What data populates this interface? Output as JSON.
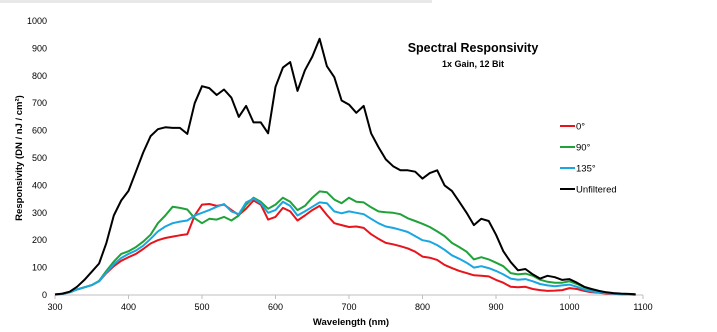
{
  "chart_data": {
    "type": "line",
    "title": "Spectral Responsivity",
    "subtitle": "1x Gain, 12 Bit",
    "xlabel": "Wavelength (nm)",
    "ylabel": "Responsivity (DN / nJ / cm²)",
    "xlim": [
      300,
      1100
    ],
    "ylim": [
      0,
      1000
    ],
    "x_ticks": [
      "300",
      "400",
      "500",
      "600",
      "700",
      "800",
      "900",
      "1000",
      "1100"
    ],
    "y_ticks": [
      "0",
      "100",
      "200",
      "300",
      "400",
      "500",
      "600",
      "700",
      "800",
      "900",
      "1000"
    ],
    "grid": false,
    "legend_position": "right",
    "series": [
      {
        "name": "0°",
        "color": "#e8141c",
        "points": [
          [
            300,
            2
          ],
          [
            310,
            4
          ],
          [
            320,
            10
          ],
          [
            330,
            20
          ],
          [
            340,
            28
          ],
          [
            350,
            36
          ],
          [
            360,
            50
          ],
          [
            370,
            80
          ],
          [
            380,
            105
          ],
          [
            390,
            125
          ],
          [
            400,
            138
          ],
          [
            410,
            150
          ],
          [
            420,
            168
          ],
          [
            430,
            188
          ],
          [
            440,
            200
          ],
          [
            450,
            208
          ],
          [
            460,
            213
          ],
          [
            470,
            218
          ],
          [
            480,
            222
          ],
          [
            490,
            290
          ],
          [
            500,
            330
          ],
          [
            510,
            332
          ],
          [
            520,
            325
          ],
          [
            530,
            330
          ],
          [
            540,
            310
          ],
          [
            550,
            292
          ],
          [
            560,
            315
          ],
          [
            570,
            345
          ],
          [
            580,
            330
          ],
          [
            590,
            275
          ],
          [
            600,
            285
          ],
          [
            610,
            318
          ],
          [
            620,
            305
          ],
          [
            630,
            272
          ],
          [
            640,
            290
          ],
          [
            650,
            310
          ],
          [
            660,
            325
          ],
          [
            670,
            292
          ],
          [
            680,
            262
          ],
          [
            690,
            255
          ],
          [
            700,
            248
          ],
          [
            710,
            250
          ],
          [
            720,
            245
          ],
          [
            730,
            222
          ],
          [
            740,
            205
          ],
          [
            750,
            190
          ],
          [
            760,
            185
          ],
          [
            770,
            178
          ],
          [
            780,
            170
          ],
          [
            790,
            158
          ],
          [
            800,
            140
          ],
          [
            810,
            136
          ],
          [
            820,
            128
          ],
          [
            830,
            110
          ],
          [
            840,
            98
          ],
          [
            850,
            88
          ],
          [
            860,
            80
          ],
          [
            870,
            72
          ],
          [
            880,
            70
          ],
          [
            890,
            68
          ],
          [
            900,
            55
          ],
          [
            910,
            45
          ],
          [
            920,
            30
          ],
          [
            930,
            28
          ],
          [
            940,
            30
          ],
          [
            950,
            22
          ],
          [
            960,
            18
          ],
          [
            970,
            15
          ],
          [
            980,
            16
          ],
          [
            990,
            18
          ],
          [
            1000,
            25
          ],
          [
            1010,
            22
          ],
          [
            1020,
            15
          ],
          [
            1030,
            10
          ],
          [
            1040,
            8
          ],
          [
            1050,
            5
          ],
          [
            1060,
            4
          ],
          [
            1070,
            3
          ],
          [
            1080,
            2
          ],
          [
            1090,
            1
          ]
        ]
      },
      {
        "name": "90°",
        "color": "#1fa23a",
        "points": [
          [
            300,
            2
          ],
          [
            310,
            4
          ],
          [
            320,
            10
          ],
          [
            330,
            20
          ],
          [
            340,
            28
          ],
          [
            350,
            36
          ],
          [
            360,
            52
          ],
          [
            370,
            88
          ],
          [
            380,
            122
          ],
          [
            390,
            150
          ],
          [
            400,
            160
          ],
          [
            410,
            175
          ],
          [
            420,
            195
          ],
          [
            430,
            220
          ],
          [
            440,
            262
          ],
          [
            450,
            290
          ],
          [
            460,
            322
          ],
          [
            470,
            318
          ],
          [
            480,
            312
          ],
          [
            490,
            280
          ],
          [
            500,
            262
          ],
          [
            510,
            278
          ],
          [
            520,
            275
          ],
          [
            530,
            285
          ],
          [
            540,
            272
          ],
          [
            550,
            290
          ],
          [
            560,
            330
          ],
          [
            570,
            355
          ],
          [
            580,
            340
          ],
          [
            590,
            315
          ],
          [
            600,
            330
          ],
          [
            610,
            355
          ],
          [
            620,
            340
          ],
          [
            630,
            310
          ],
          [
            640,
            325
          ],
          [
            650,
            355
          ],
          [
            660,
            378
          ],
          [
            670,
            375
          ],
          [
            680,
            348
          ],
          [
            690,
            335
          ],
          [
            700,
            355
          ],
          [
            710,
            340
          ],
          [
            720,
            338
          ],
          [
            730,
            320
          ],
          [
            740,
            305
          ],
          [
            750,
            302
          ],
          [
            760,
            300
          ],
          [
            770,
            295
          ],
          [
            780,
            280
          ],
          [
            790,
            270
          ],
          [
            800,
            260
          ],
          [
            810,
            248
          ],
          [
            820,
            232
          ],
          [
            830,
            215
          ],
          [
            840,
            190
          ],
          [
            850,
            175
          ],
          [
            860,
            158
          ],
          [
            870,
            130
          ],
          [
            880,
            138
          ],
          [
            890,
            130
          ],
          [
            900,
            118
          ],
          [
            910,
            105
          ],
          [
            920,
            80
          ],
          [
            930,
            75
          ],
          [
            940,
            78
          ],
          [
            950,
            70
          ],
          [
            960,
            56
          ],
          [
            970,
            48
          ],
          [
            980,
            45
          ],
          [
            990,
            45
          ],
          [
            1000,
            50
          ],
          [
            1010,
            40
          ],
          [
            1020,
            28
          ],
          [
            1030,
            18
          ],
          [
            1040,
            12
          ],
          [
            1050,
            9
          ],
          [
            1060,
            6
          ],
          [
            1070,
            4
          ],
          [
            1080,
            3
          ],
          [
            1090,
            2
          ]
        ]
      },
      {
        "name": "135°",
        "color": "#1aa6e0",
        "points": [
          [
            300,
            2
          ],
          [
            310,
            4
          ],
          [
            320,
            10
          ],
          [
            330,
            20
          ],
          [
            340,
            28
          ],
          [
            350,
            36
          ],
          [
            360,
            50
          ],
          [
            370,
            82
          ],
          [
            380,
            112
          ],
          [
            390,
            135
          ],
          [
            400,
            150
          ],
          [
            410,
            162
          ],
          [
            420,
            180
          ],
          [
            430,
            205
          ],
          [
            440,
            232
          ],
          [
            450,
            250
          ],
          [
            460,
            262
          ],
          [
            470,
            268
          ],
          [
            480,
            272
          ],
          [
            490,
            290
          ],
          [
            500,
            300
          ],
          [
            510,
            310
          ],
          [
            520,
            322
          ],
          [
            530,
            332
          ],
          [
            540,
            305
          ],
          [
            550,
            295
          ],
          [
            560,
            338
          ],
          [
            570,
            352
          ],
          [
            580,
            335
          ],
          [
            590,
            300
          ],
          [
            600,
            310
          ],
          [
            610,
            340
          ],
          [
            620,
            325
          ],
          [
            630,
            290
          ],
          [
            640,
            305
          ],
          [
            650,
            322
          ],
          [
            660,
            338
          ],
          [
            670,
            335
          ],
          [
            680,
            305
          ],
          [
            690,
            298
          ],
          [
            700,
            305
          ],
          [
            710,
            300
          ],
          [
            720,
            295
          ],
          [
            730,
            278
          ],
          [
            740,
            262
          ],
          [
            750,
            250
          ],
          [
            760,
            245
          ],
          [
            770,
            238
          ],
          [
            780,
            230
          ],
          [
            790,
            215
          ],
          [
            800,
            200
          ],
          [
            810,
            195
          ],
          [
            820,
            182
          ],
          [
            830,
            165
          ],
          [
            840,
            145
          ],
          [
            850,
            132
          ],
          [
            860,
            118
          ],
          [
            870,
            100
          ],
          [
            880,
            105
          ],
          [
            890,
            98
          ],
          [
            900,
            88
          ],
          [
            910,
            75
          ],
          [
            920,
            60
          ],
          [
            930,
            56
          ],
          [
            940,
            58
          ],
          [
            950,
            50
          ],
          [
            960,
            40
          ],
          [
            970,
            35
          ],
          [
            980,
            32
          ],
          [
            990,
            35
          ],
          [
            1000,
            38
          ],
          [
            1010,
            30
          ],
          [
            1020,
            20
          ],
          [
            1030,
            13
          ],
          [
            1040,
            9
          ],
          [
            1050,
            7
          ],
          [
            1060,
            5
          ],
          [
            1070,
            3
          ],
          [
            1080,
            2
          ],
          [
            1090,
            1
          ]
        ]
      },
      {
        "name": "Unfiltered",
        "color": "#000000",
        "points": [
          [
            300,
            2
          ],
          [
            310,
            5
          ],
          [
            320,
            12
          ],
          [
            330,
            30
          ],
          [
            340,
            55
          ],
          [
            350,
            85
          ],
          [
            360,
            115
          ],
          [
            370,
            190
          ],
          [
            380,
            290
          ],
          [
            390,
            345
          ],
          [
            400,
            380
          ],
          [
            410,
            450
          ],
          [
            420,
            520
          ],
          [
            430,
            580
          ],
          [
            440,
            605
          ],
          [
            450,
            612
          ],
          [
            460,
            610
          ],
          [
            470,
            610
          ],
          [
            480,
            588
          ],
          [
            490,
            700
          ],
          [
            500,
            762
          ],
          [
            510,
            755
          ],
          [
            520,
            730
          ],
          [
            530,
            750
          ],
          [
            540,
            720
          ],
          [
            550,
            650
          ],
          [
            560,
            690
          ],
          [
            570,
            630
          ],
          [
            580,
            630
          ],
          [
            590,
            590
          ],
          [
            600,
            760
          ],
          [
            610,
            830
          ],
          [
            620,
            850
          ],
          [
            630,
            745
          ],
          [
            640,
            820
          ],
          [
            650,
            870
          ],
          [
            660,
            935
          ],
          [
            670,
            835
          ],
          [
            680,
            795
          ],
          [
            690,
            710
          ],
          [
            700,
            695
          ],
          [
            710,
            665
          ],
          [
            720,
            690
          ],
          [
            730,
            590
          ],
          [
            740,
            540
          ],
          [
            750,
            495
          ],
          [
            760,
            470
          ],
          [
            770,
            455
          ],
          [
            780,
            455
          ],
          [
            790,
            450
          ],
          [
            800,
            425
          ],
          [
            810,
            445
          ],
          [
            820,
            455
          ],
          [
            830,
            400
          ],
          [
            840,
            380
          ],
          [
            850,
            340
          ],
          [
            860,
            300
          ],
          [
            870,
            255
          ],
          [
            880,
            278
          ],
          [
            890,
            270
          ],
          [
            900,
            220
          ],
          [
            910,
            160
          ],
          [
            920,
            120
          ],
          [
            930,
            90
          ],
          [
            940,
            95
          ],
          [
            950,
            75
          ],
          [
            960,
            60
          ],
          [
            970,
            70
          ],
          [
            980,
            65
          ],
          [
            990,
            55
          ],
          [
            1000,
            58
          ],
          [
            1010,
            45
          ],
          [
            1020,
            30
          ],
          [
            1030,
            22
          ],
          [
            1040,
            15
          ],
          [
            1050,
            10
          ],
          [
            1060,
            7
          ],
          [
            1070,
            5
          ],
          [
            1080,
            4
          ],
          [
            1090,
            3
          ]
        ]
      }
    ]
  }
}
